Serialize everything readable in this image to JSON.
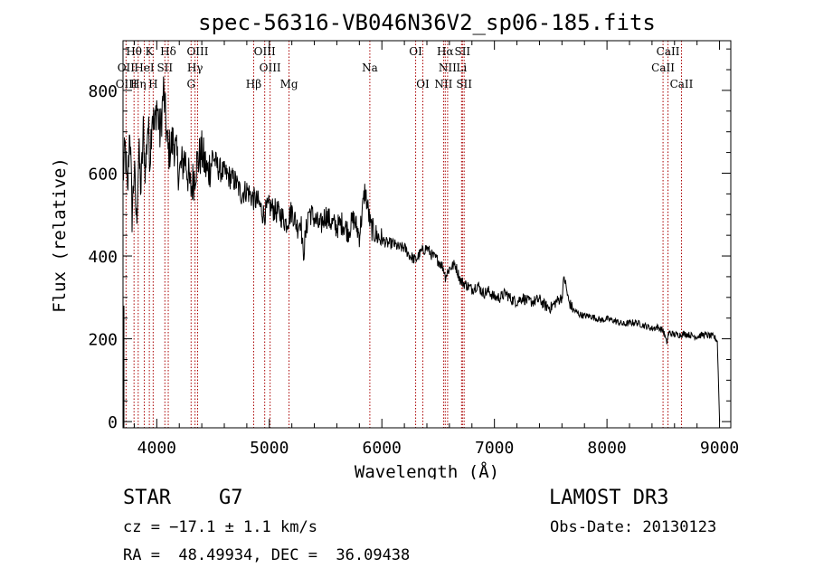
{
  "chart_data": {
    "type": "line",
    "title": "spec-56316-VB046N36V2_sp06-185.fits",
    "xlabel": "Wavelength (Å)",
    "ylabel": "Flux (relative)",
    "xlim": [
      3700,
      9100
    ],
    "ylim": [
      -15,
      920
    ],
    "xticks": [
      4000,
      5000,
      6000,
      7000,
      8000,
      9000
    ],
    "yticks": [
      0,
      200,
      400,
      600,
      800
    ],
    "series": [
      {
        "name": "flux",
        "x": [
          3700,
          3720,
          3740,
          3760,
          3780,
          3800,
          3820,
          3840,
          3860,
          3880,
          3900,
          3920,
          3940,
          3960,
          3980,
          4000,
          4030,
          4060,
          4100,
          4150,
          4200,
          4250,
          4300,
          4330,
          4350,
          4400,
          4450,
          4500,
          4550,
          4600,
          4650,
          4700,
          4750,
          4800,
          4850,
          4900,
          4950,
          5000,
          5050,
          5100,
          5150,
          5200,
          5250,
          5280,
          5300,
          5350,
          5400,
          5450,
          5500,
          5550,
          5600,
          5650,
          5700,
          5750,
          5800,
          5850,
          5900,
          5950,
          6000,
          6050,
          6100,
          6150,
          6200,
          6250,
          6300,
          6350,
          6400,
          6450,
          6500,
          6550,
          6563,
          6600,
          6650,
          6700,
          6750,
          6800,
          6850,
          6900,
          6950,
          7000,
          7050,
          7100,
          7150,
          7200,
          7250,
          7300,
          7350,
          7400,
          7450,
          7500,
          7550,
          7600,
          7620,
          7640,
          7660,
          7700,
          7750,
          7800,
          7850,
          7900,
          7950,
          8000,
          8050,
          8100,
          8150,
          8200,
          8250,
          8300,
          8350,
          8400,
          8450,
          8500,
          8530,
          8550,
          8600,
          8650,
          8700,
          8750,
          8800,
          8850,
          8900,
          8950,
          8980,
          9000
        ],
        "y": [
          590,
          660,
          540,
          720,
          500,
          610,
          480,
          650,
          560,
          700,
          600,
          720,
          640,
          760,
          700,
          770,
          690,
          800,
          650,
          680,
          600,
          640,
          560,
          590,
          620,
          650,
          600,
          640,
          610,
          600,
          590,
          580,
          550,
          560,
          540,
          530,
          500,
          520,
          510,
          500,
          480,
          510,
          470,
          490,
          400,
          510,
          490,
          470,
          500,
          480,
          470,
          480,
          460,
          490,
          450,
          560,
          470,
          450,
          440,
          430,
          430,
          420,
          420,
          400,
          390,
          410,
          420,
          400,
          390,
          370,
          350,
          370,
          380,
          340,
          330,
          320,
          330,
          310,
          315,
          300,
          300,
          310,
          295,
          290,
          300,
          290,
          290,
          295,
          280,
          275,
          290,
          300,
          350,
          320,
          290,
          270,
          260,
          255,
          255,
          250,
          245,
          248,
          245,
          240,
          235,
          238,
          240,
          235,
          230,
          225,
          228,
          220,
          190,
          215,
          210,
          210,
          212,
          208,
          205,
          210,
          208,
          205,
          195,
          0
        ]
      }
    ],
    "lines_top": [
      {
        "label": "Hθ",
        "wl": 3798,
        "row": 0
      },
      {
        "label": "K",
        "wl": 3934,
        "row": 0
      },
      {
        "label": "Hδ",
        "wl": 4102,
        "row": 0
      },
      {
        "label": "OIII",
        "wl": 4363,
        "row": 0
      },
      {
        "label": "OIII",
        "wl": 4959,
        "row": 0
      },
      {
        "label": "OI",
        "wl": 6300,
        "row": 0
      },
      {
        "label": "Hα",
        "wl": 6563,
        "row": 0
      },
      {
        "label": "SII",
        "wl": 6716,
        "row": 0
      },
      {
        "label": "CaII",
        "wl": 8542,
        "row": 0
      },
      {
        "label": "OII",
        "wl": 3727,
        "row": 1
      },
      {
        "label": "HeI",
        "wl": 3889,
        "row": 1
      },
      {
        "label": "SII",
        "wl": 4072,
        "row": 1
      },
      {
        "label": "Hγ",
        "wl": 4340,
        "row": 1
      },
      {
        "label": "OIII",
        "wl": 5007,
        "row": 1
      },
      {
        "label": "Na",
        "wl": 5893,
        "row": 1
      },
      {
        "label": "NII",
        "wl": 6584,
        "row": 1
      },
      {
        "label": "Li",
        "wl": 6708,
        "row": 1
      },
      {
        "label": "CaII",
        "wl": 8498,
        "row": 1
      },
      {
        "label": "OIII",
        "wl": 3730,
        "row": 2
      },
      {
        "label": "Hη",
        "wl": 3835,
        "row": 2
      },
      {
        "label": "H",
        "wl": 3968,
        "row": 2
      },
      {
        "label": "G",
        "wl": 4305,
        "row": 2
      },
      {
        "label": "Hβ",
        "wl": 4861,
        "row": 2
      },
      {
        "label": "Mg",
        "wl": 5175,
        "row": 2
      },
      {
        "label": "OI",
        "wl": 6364,
        "row": 2
      },
      {
        "label": "NII",
        "wl": 6548,
        "row": 2
      },
      {
        "label": "SII",
        "wl": 6731,
        "row": 2
      },
      {
        "label": "CaII",
        "wl": 8662,
        "row": 2
      }
    ],
    "marker_lines": [
      3727,
      3798,
      3835,
      3889,
      3934,
      3968,
      4072,
      4102,
      4305,
      4340,
      4363,
      4861,
      4959,
      5007,
      5175,
      5893,
      6300,
      6364,
      6548,
      6563,
      6584,
      6708,
      6716,
      6731,
      8498,
      8542,
      8662
    ],
    "line_color": "#000000",
    "marker_color": "#aa0000"
  },
  "info": {
    "object_class": "STAR",
    "subclass": "G7",
    "survey": "LAMOST DR3",
    "cz": "cz = −17.1 ± 1.1 km/s",
    "obs_date": "Obs-Date: 20130123",
    "coords": "RA =  48.49934, DEC =  36.09438"
  }
}
